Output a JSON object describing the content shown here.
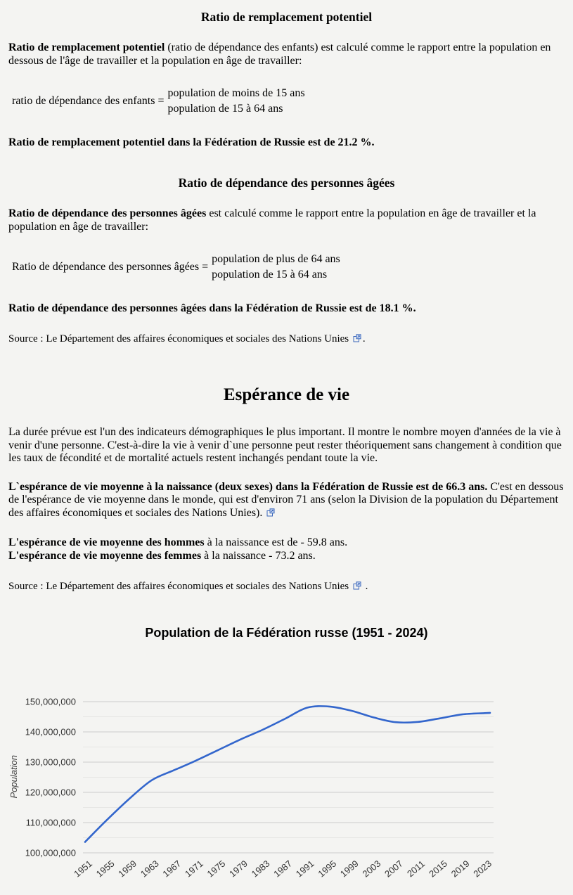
{
  "replacement": {
    "title": "Ratio de remplacement potentiel",
    "para_bold": "Ratio de remplacement potentiel",
    "para_rest": " (ratio de dépendance des enfants) est calculé comme le rapport entre la population en dessous de l'âge de travailler et la population en âge de travailler:",
    "formula_label": "ratio de dépendance des enfants =",
    "formula_num": "population de moins de 15 ans",
    "formula_den": "population de 15 à 64 ans",
    "result": "Ratio de remplacement potentiel dans la Fédération de Russie est de 21.2 %."
  },
  "elderly": {
    "title": "Ratio de dépendance des personnes âgées",
    "para_bold": "Ratio de dépendance des personnes âgées",
    "para_rest": " est calculé comme le rapport entre la population en âge de travailler et la population en âge de travailler:",
    "formula_label": "Ratio de dépendance des personnes âgées =",
    "formula_num": "population de plus de 64 ans",
    "formula_den": "population de 15 à 64 ans",
    "result": "Ratio de dépendance des personnes âgées dans la Fédération de Russie est de 18.1 %.",
    "source_text": "Source : Le Département des affaires économiques et sociales des Nations Unies",
    "source_period": "."
  },
  "life": {
    "title": "Espérance de vie",
    "para1": "La durée prévue est l'un des indicateurs démographiques le plus important. Il montre le nombre moyen d'années de la vie à venir d'une personne. C'est-à-dire la vie à venir d`une personne peut rester théoriquement sans changement à condition que les taux de fécondité et de mortalité actuels restent inchangés pendant toute la vie.",
    "para2_bold": "L`espérance de vie moyenne à la naissance (deux sexes) dans la Fédération de Russie est de 66.3 ans.",
    "para2_rest": " C'est en dessous de l'espérance de vie moyenne dans le monde, qui est d'environ 71 ans (selon la Division de la population du Département des affaires économiques et sociales des Nations Unies).",
    "men_bold": "L'espérance de vie moyenne des hommes",
    "men_rest": " à la naissance est de - 59.8 ans.",
    "women_bold": "L'espérance de vie moyenne des femmes",
    "women_rest": " à la naissance - 73.2 ans.",
    "source_text": "Source : Le Département des affaires économiques et sociales des Nations Unies",
    "source_period": " ."
  },
  "chart_data": {
    "type": "line",
    "title": "Population de la Fédération russe (1951 - 2024)",
    "ylabel": "Population",
    "x": [
      1951,
      1955,
      1959,
      1963,
      1967,
      1971,
      1975,
      1979,
      1983,
      1987,
      1991,
      1995,
      1999,
      2003,
      2007,
      2011,
      2015,
      2019,
      2023,
      2024
    ],
    "values": [
      103600000,
      111000000,
      117900000,
      124000000,
      127300000,
      130500000,
      134000000,
      137500000,
      140700000,
      144300000,
      148000000,
      148400000,
      147000000,
      144800000,
      143200000,
      143300000,
      144500000,
      145800000,
      146200000,
      146300000
    ],
    "ylim": [
      100000000,
      150000000
    ],
    "y_major_step": 10000000,
    "y_minor_step": 5000000,
    "y_tick_labels": [
      "100,000,000",
      "110,000,000",
      "120,000,000",
      "130,000,000",
      "140,000,000",
      "150,000,000"
    ],
    "x_tick_years": [
      1951,
      1955,
      1959,
      1963,
      1967,
      1971,
      1975,
      1979,
      1983,
      1987,
      1991,
      1995,
      1999,
      2003,
      2007,
      2011,
      2015,
      2019,
      2023
    ],
    "grid": "on",
    "legend": "none",
    "line_color": "#3366cc",
    "major_grid_color": "#cccccc",
    "minor_grid_color": "#e6e6e4",
    "axis_label_color": "#333333"
  }
}
